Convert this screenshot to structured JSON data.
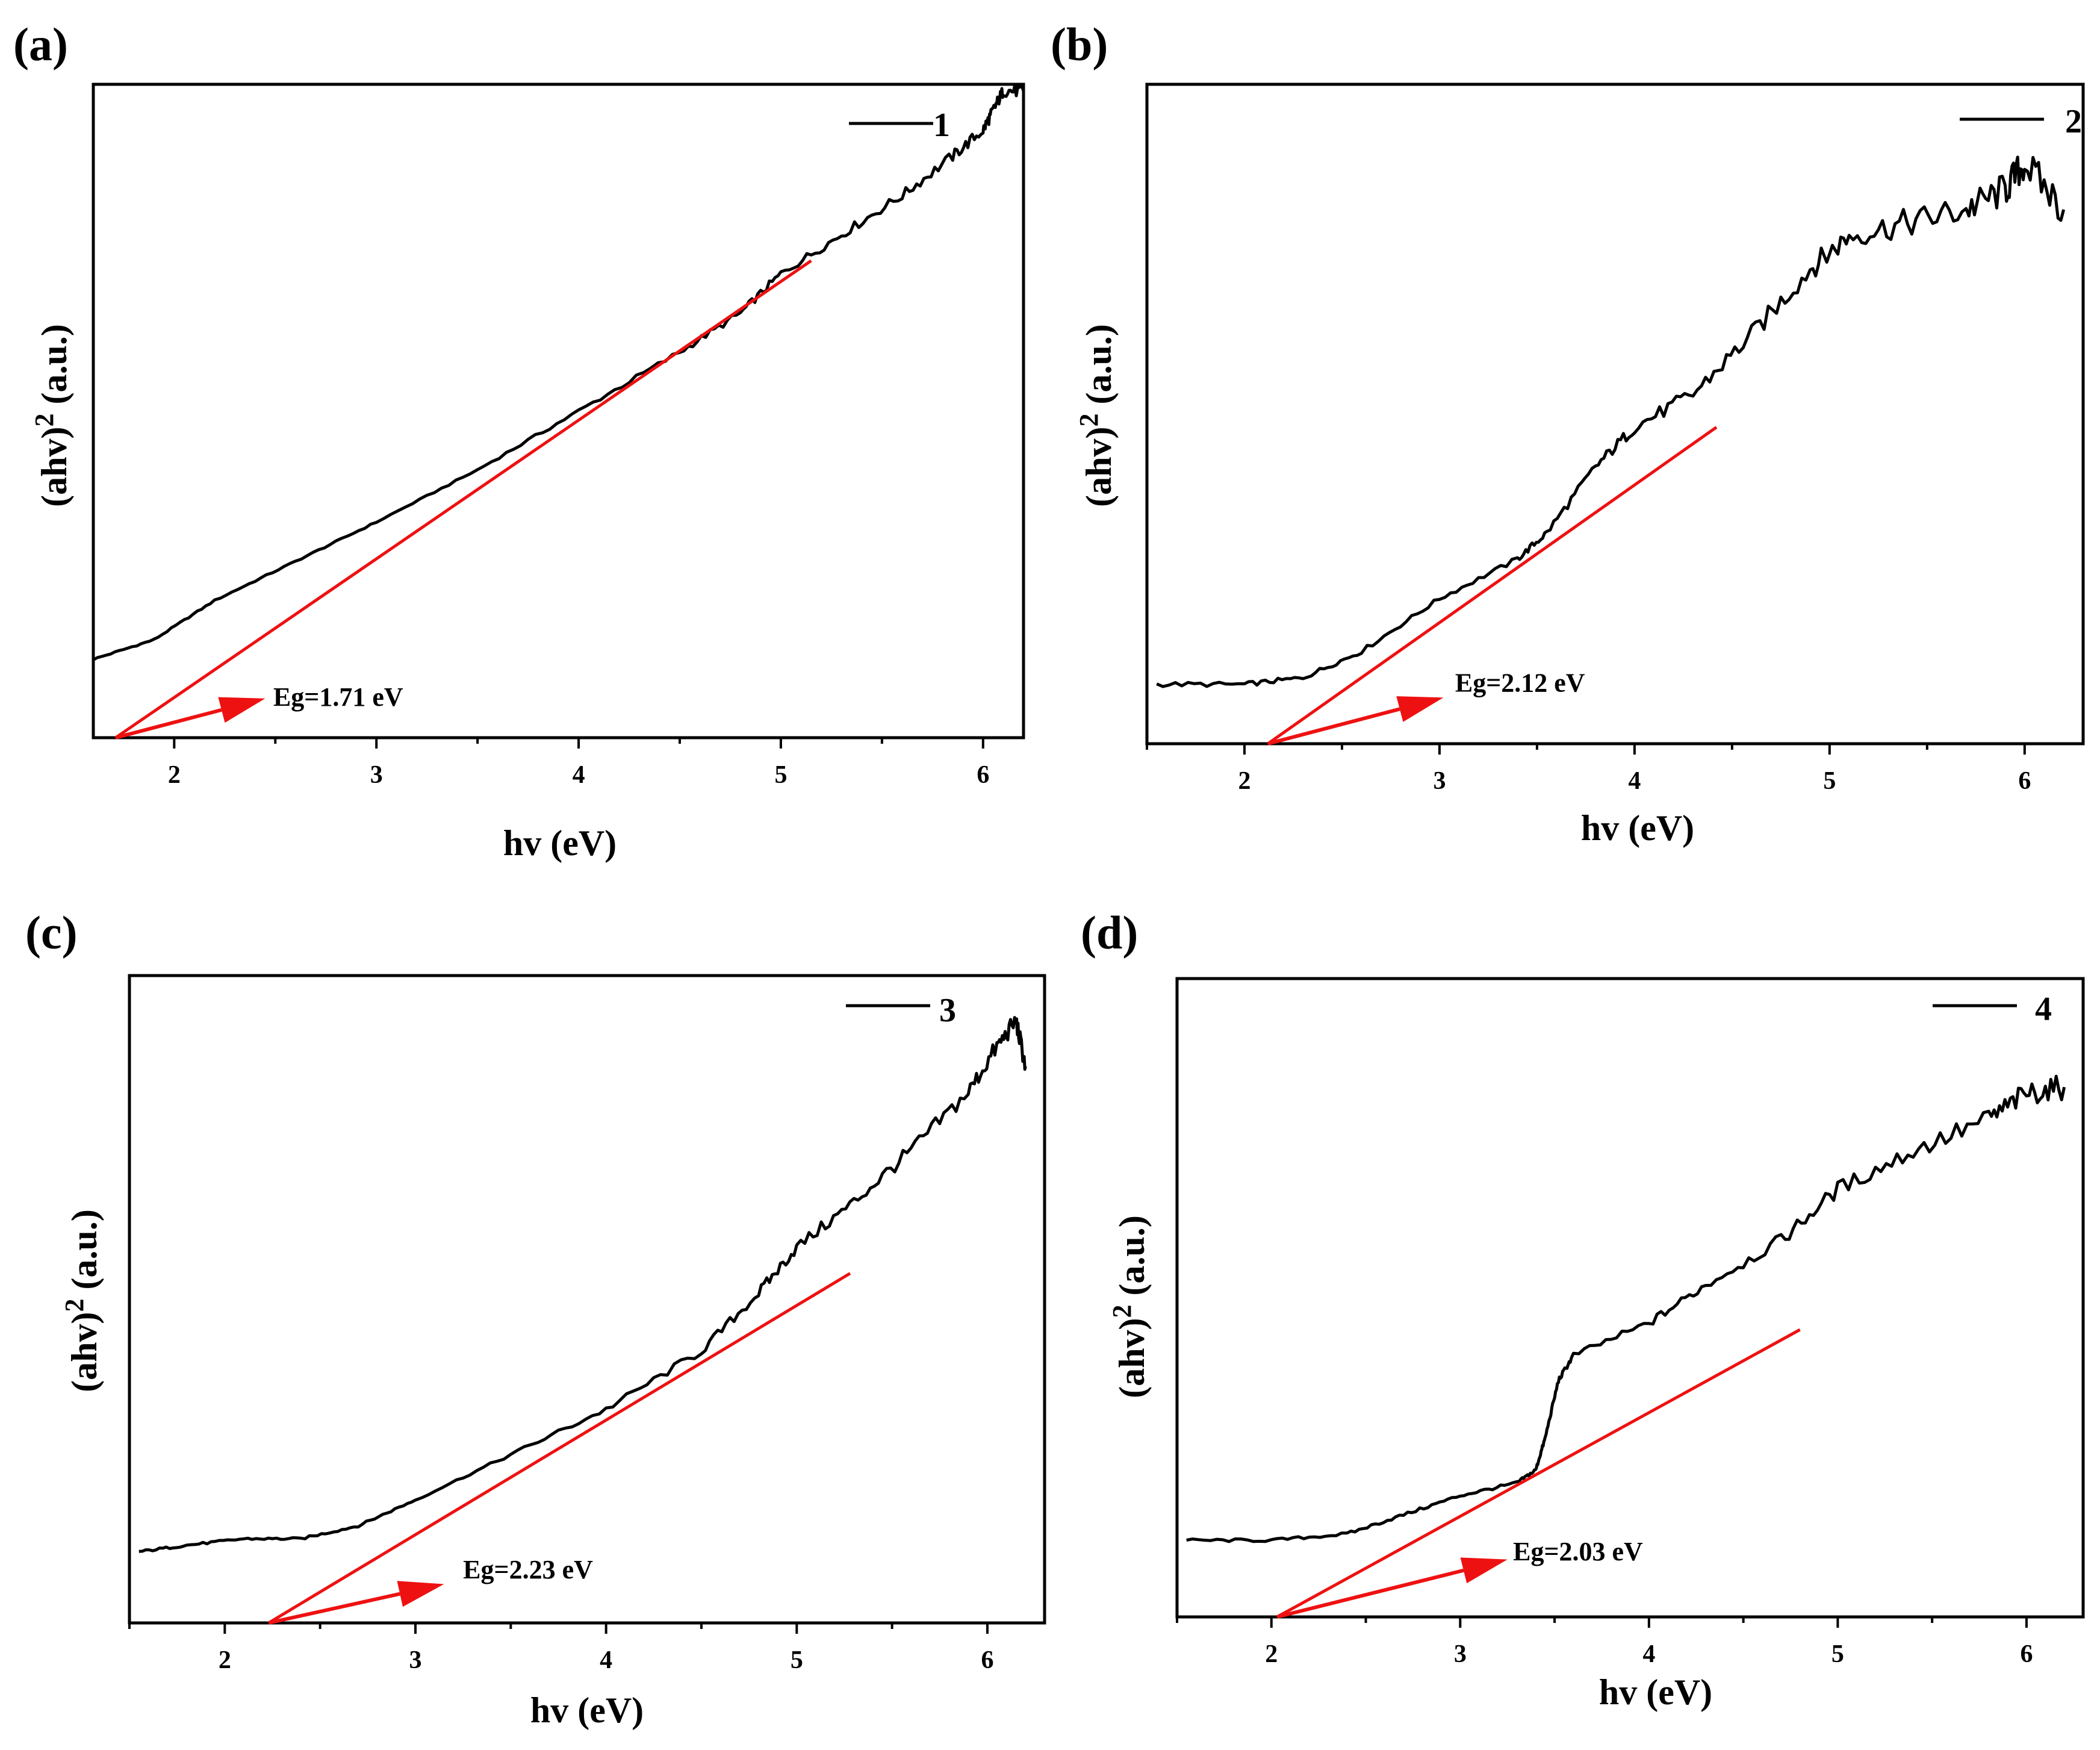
{
  "figure": {
    "background": "#ffffff",
    "curve_color": "#000000",
    "fit_color": "#ee1111"
  },
  "chart_data": [
    {
      "type": "line",
      "panel_label": "(a)",
      "xlabel": "hv (eV)",
      "ylabel_base": "(ahv)",
      "ylabel_sup": "2",
      "ylabel_tail": " (a.u.)",
      "xlim": [
        1.6,
        6.2
      ],
      "ylim": [
        0,
        1
      ],
      "xticks": [
        2,
        3,
        4,
        5,
        6
      ],
      "xtick_labels": [
        "2",
        "3",
        "4",
        "5",
        "6"
      ],
      "legend": "1",
      "series": [
        {
          "name": "1",
          "x": [
            1.6,
            1.9,
            2.2,
            2.6,
            3.0,
            3.5,
            4.0,
            4.5,
            4.8,
            5.0,
            5.3,
            5.6,
            5.85,
            6.0,
            6.05,
            6.1,
            6.2
          ],
          "y": [
            0.12,
            0.15,
            0.21,
            0.27,
            0.33,
            0.41,
            0.5,
            0.59,
            0.65,
            0.71,
            0.77,
            0.83,
            0.89,
            0.93,
            0.96,
            0.99,
            0.99
          ]
        }
      ],
      "fit_line": {
        "x": [
          1.71,
          5.15
        ],
        "y": [
          0.0,
          0.73
        ]
      },
      "band_gap_label": "Eg=1.71 eV"
    },
    {
      "type": "line",
      "panel_label": "(b)",
      "xlabel": "hv (eV)",
      "ylabel_base": "(ahv)",
      "ylabel_sup": "2",
      "ylabel_tail": " (a.u.)",
      "xlim": [
        1.5,
        6.3
      ],
      "ylim": [
        0,
        1
      ],
      "xticks": [
        2,
        3,
        4,
        5,
        6
      ],
      "xtick_labels": [
        "2",
        "3",
        "4",
        "5",
        "6"
      ],
      "legend": "2",
      "series": [
        {
          "name": "2",
          "x": [
            1.55,
            2.0,
            2.3,
            2.6,
            3.0,
            3.4,
            3.55,
            3.8,
            4.0,
            4.3,
            4.6,
            4.9,
            5.1,
            5.4,
            5.7,
            5.9,
            6.0,
            6.2
          ],
          "y": [
            0.09,
            0.09,
            0.1,
            0.14,
            0.22,
            0.28,
            0.32,
            0.42,
            0.48,
            0.53,
            0.62,
            0.72,
            0.77,
            0.79,
            0.81,
            0.84,
            0.88,
            0.81
          ]
        }
      ],
      "fit_line": {
        "x": [
          2.12,
          4.42
        ],
        "y": [
          0.0,
          0.48
        ]
      },
      "band_gap_label": "Eg=2.12 eV"
    },
    {
      "type": "line",
      "panel_label": "(c)",
      "xlabel": "hv (eV)",
      "ylabel_base": "(ahv)",
      "ylabel_sup": "2",
      "ylabel_tail": " (a.u.)",
      "xlim": [
        1.5,
        6.3
      ],
      "ylim": [
        0,
        1
      ],
      "xticks": [
        2,
        3,
        4,
        5,
        6
      ],
      "xtick_labels": [
        "2",
        "3",
        "4",
        "5",
        "6"
      ],
      "legend": "3",
      "series": [
        {
          "name": "3",
          "x": [
            1.55,
            1.8,
            2.1,
            2.4,
            2.7,
            3.0,
            3.5,
            4.0,
            4.5,
            4.8,
            5.0,
            5.3,
            5.6,
            5.9,
            6.05,
            6.15,
            6.2
          ],
          "y": [
            0.11,
            0.12,
            0.13,
            0.13,
            0.15,
            0.19,
            0.26,
            0.33,
            0.42,
            0.51,
            0.58,
            0.65,
            0.73,
            0.82,
            0.89,
            0.93,
            0.86
          ]
        }
      ],
      "fit_line": {
        "x": [
          2.23,
          5.28
        ],
        "y": [
          0.0,
          0.54
        ]
      },
      "band_gap_label": "Eg=2.23 eV"
    },
    {
      "type": "line",
      "panel_label": "(d)",
      "xlabel": "hv (eV)",
      "ylabel_base": "(ahv)",
      "ylabel_sup": "2",
      "ylabel_tail": " (a.u.)",
      "xlim": [
        1.5,
        6.3
      ],
      "ylim": [
        0,
        1
      ],
      "xticks": [
        2,
        3,
        4,
        5,
        6
      ],
      "xtick_labels": [
        "2",
        "3",
        "4",
        "5",
        "6"
      ],
      "legend": "4",
      "series": [
        {
          "name": "4",
          "x": [
            1.55,
            2.0,
            2.4,
            2.7,
            3.0,
            3.3,
            3.4,
            3.45,
            3.52,
            3.6,
            4.0,
            4.3,
            4.7,
            5.0,
            5.4,
            5.8,
            6.0,
            6.2
          ],
          "y": [
            0.12,
            0.12,
            0.13,
            0.16,
            0.19,
            0.21,
            0.23,
            0.28,
            0.37,
            0.41,
            0.46,
            0.52,
            0.59,
            0.67,
            0.73,
            0.78,
            0.82,
            0.83
          ]
        }
      ],
      "fit_line": {
        "x": [
          2.03,
          4.8
        ],
        "y": [
          0.0,
          0.45
        ]
      },
      "band_gap_label": "Eg=2.03 eV"
    }
  ]
}
